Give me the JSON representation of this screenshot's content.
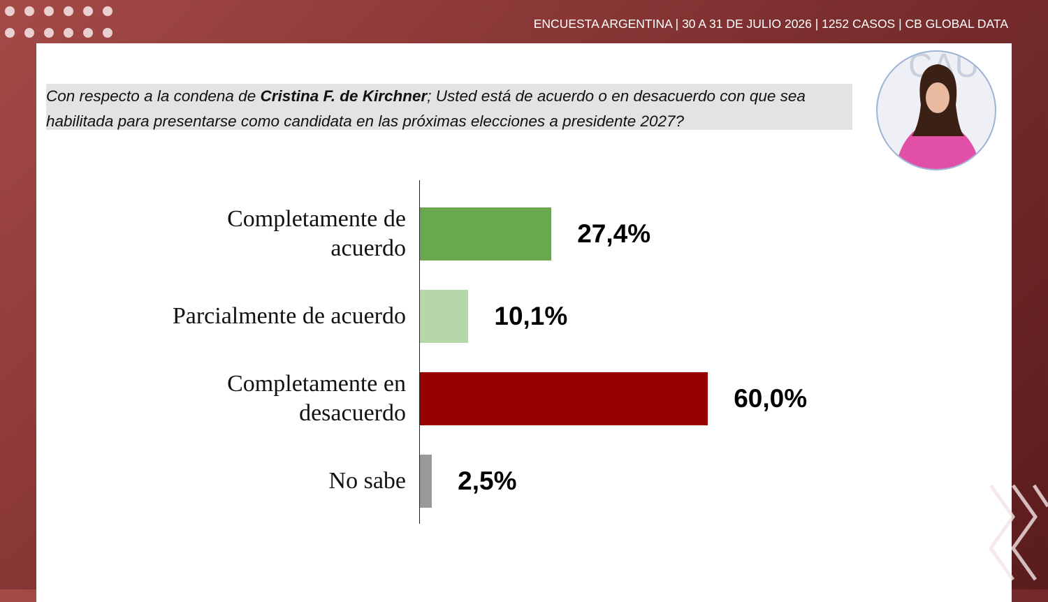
{
  "header": "ENCUESTA ARGENTINA | 30 A 31 DE JULIO 2026 | 1252 CASOS | CB GLOBAL DATA",
  "question": {
    "before": "Con respecto a la condena de ",
    "bold": "Cristina F. de Kirchner",
    "after": "; Usted está de acuerdo o en desacuerdo con que sea habilitada para presentarse como candidata en las próximas elecciones a presidente 2027?"
  },
  "chart_data": {
    "type": "barh",
    "categories": [
      "Completamente de acuerdo",
      "Parcialmente de acuerdo",
      "Completamente en desacuerdo",
      "No sabe"
    ],
    "values": [
      27.4,
      10.1,
      60.0,
      2.5
    ],
    "value_labels": [
      "27,4%",
      "10,1%",
      "60,0%",
      "2,5%"
    ],
    "colors": [
      "#6aa84f",
      "#b6d7a8",
      "#990000",
      "#999999"
    ]
  }
}
